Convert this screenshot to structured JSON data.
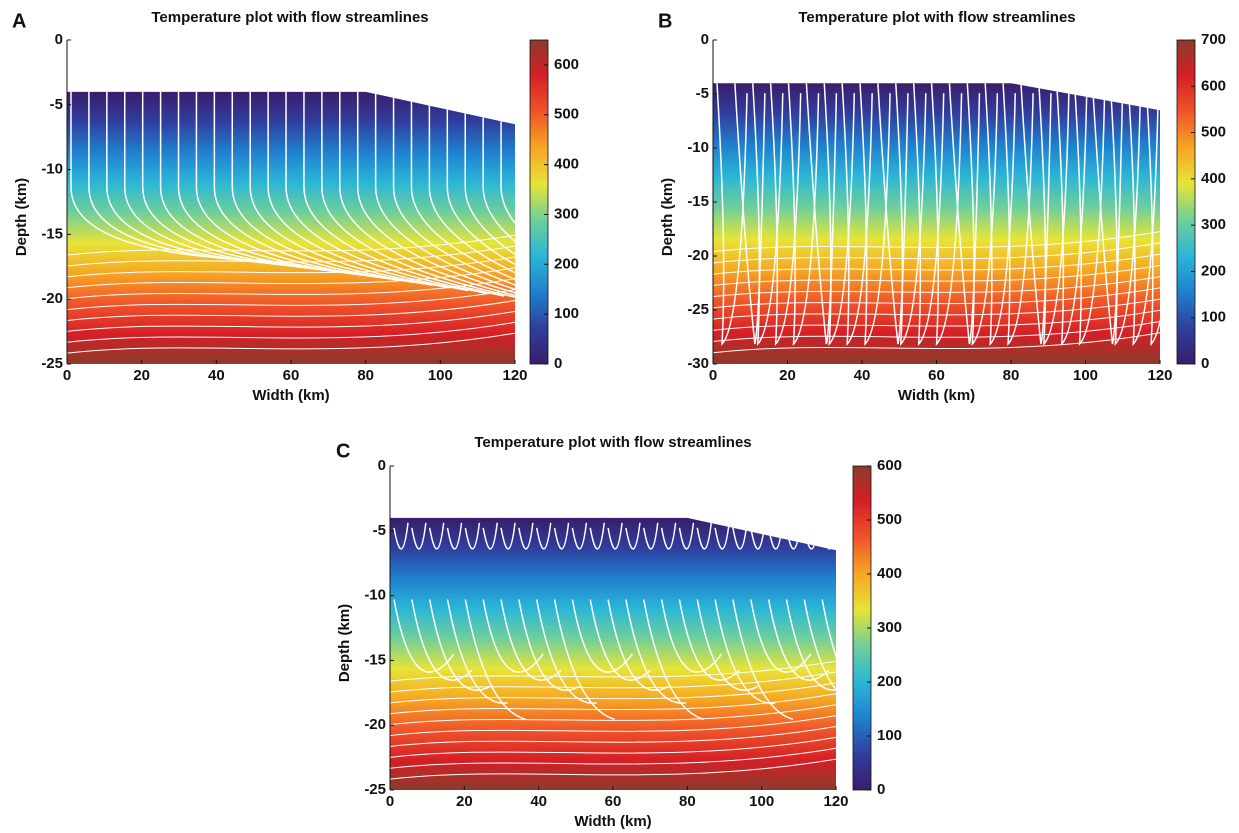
{
  "chart_data": [
    {
      "type": "heatmap",
      "label": "A",
      "title": "Temperature plot with flow streamlines",
      "xlabel": "Width (km)",
      "ylabel": "Depth (km)",
      "xlim": [
        0,
        120
      ],
      "xticks": [
        0,
        20,
        40,
        60,
        80,
        100,
        120
      ],
      "ylim": [
        -25,
        0
      ],
      "yticks": [
        -25,
        -20,
        -15,
        -10,
        -5,
        0
      ],
      "surface": {
        "x": [
          0,
          80,
          120
        ],
        "y": [
          -4,
          -4,
          -6.5
        ]
      },
      "clim": [
        0,
        650
      ],
      "cticks": [
        0,
        100,
        200,
        300,
        400,
        500,
        600
      ],
      "colormap": [
        "#3a1d6b",
        "#2f3f9e",
        "#1f80cf",
        "#2bb6d6",
        "#6fcf9a",
        "#e7e437",
        "#f6a623",
        "#f0552a",
        "#d61f26",
        "#8a3b2c"
      ]
    },
    {
      "type": "heatmap",
      "label": "B",
      "title": "Temperature plot with flow streamlines",
      "xlabel": "Width (km)",
      "ylabel": "Depth (km)",
      "xlim": [
        0,
        120
      ],
      "xticks": [
        0,
        20,
        40,
        60,
        80,
        100,
        120
      ],
      "ylim": [
        -30,
        0
      ],
      "yticks": [
        -30,
        -25,
        -20,
        -15,
        -10,
        -5,
        0
      ],
      "surface": {
        "x": [
          0,
          80,
          120
        ],
        "y": [
          -4,
          -4,
          -6.5
        ]
      },
      "clim": [
        0,
        700
      ],
      "cticks": [
        0,
        100,
        200,
        300,
        400,
        500,
        600,
        700
      ],
      "colormap": [
        "#3a1d6b",
        "#2f3f9e",
        "#1f80cf",
        "#2bb6d6",
        "#6fcf9a",
        "#e7e437",
        "#f6a623",
        "#f0552a",
        "#d61f26",
        "#8a3b2c"
      ]
    },
    {
      "type": "heatmap",
      "label": "C",
      "title": "Temperature plot with flow streamlines",
      "xlabel": "Width (km)",
      "ylabel": "Depth (km)",
      "xlim": [
        0,
        120
      ],
      "xticks": [
        0,
        20,
        40,
        60,
        80,
        100,
        120
      ],
      "ylim": [
        -25,
        0
      ],
      "yticks": [
        -25,
        -20,
        -15,
        -10,
        -5,
        0
      ],
      "surface": {
        "x": [
          0,
          80,
          120
        ],
        "y": [
          -4,
          -4,
          -6.5
        ]
      },
      "clim": [
        0,
        600
      ],
      "cticks": [
        0,
        100,
        200,
        300,
        400,
        500,
        600
      ],
      "colormap": [
        "#3a1d6b",
        "#2f3f9e",
        "#1f80cf",
        "#2bb6d6",
        "#6fcf9a",
        "#e7e437",
        "#f6a623",
        "#f0552a",
        "#d61f26",
        "#8a3b2c"
      ]
    }
  ]
}
